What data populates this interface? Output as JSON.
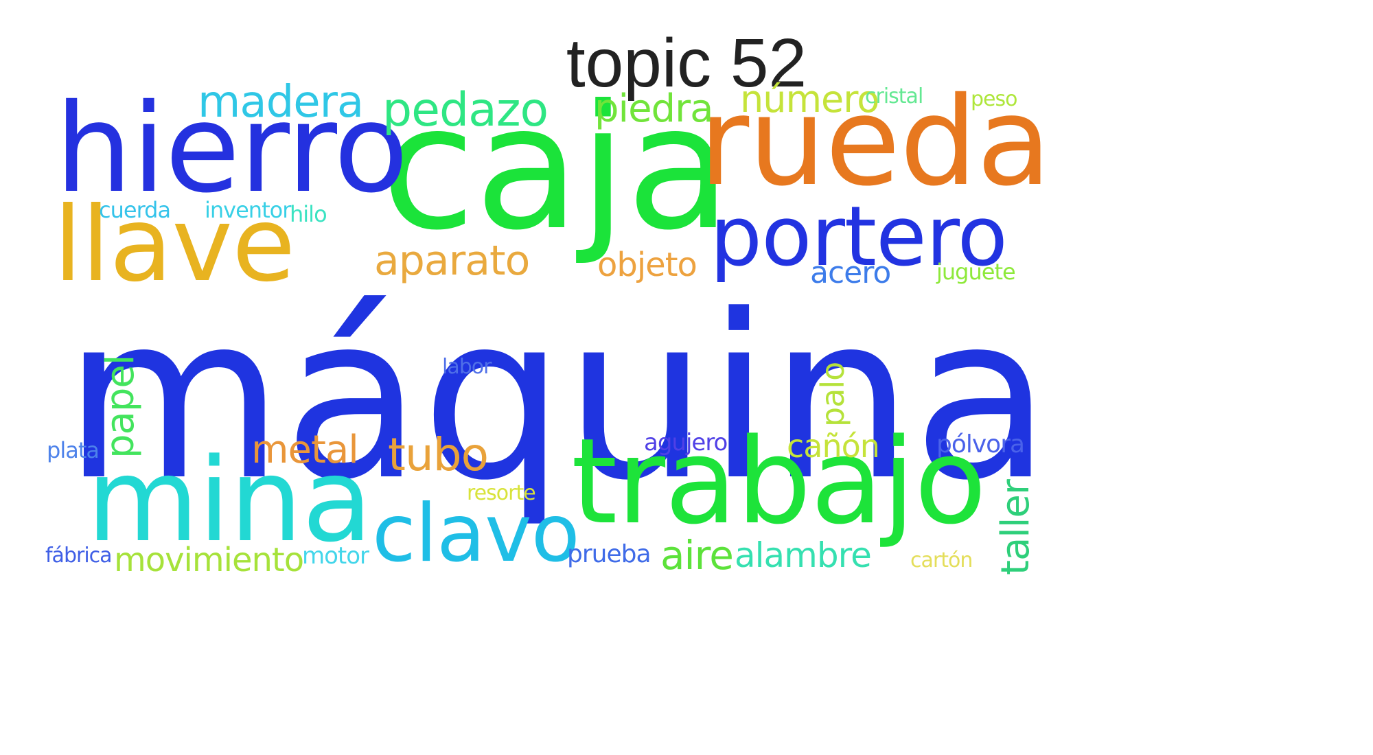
{
  "title": "topic 52",
  "words": [
    {
      "text": "máquina",
      "color": "#1f34e0"
    },
    {
      "text": "caja",
      "color": "#1be33a"
    },
    {
      "text": "rueda",
      "color": "#e7781f"
    },
    {
      "text": "hierro",
      "color": "#2431df"
    },
    {
      "text": "trabajo",
      "color": "#1de33a"
    },
    {
      "text": "mina",
      "color": "#22d8d3"
    },
    {
      "text": "llave",
      "color": "#e8b320"
    },
    {
      "text": "portero",
      "color": "#2233e1"
    },
    {
      "text": "clavo",
      "color": "#1fbee6"
    },
    {
      "text": "madera",
      "color": "#2fc7e6"
    },
    {
      "text": "pedazo",
      "color": "#2ee683"
    },
    {
      "text": "piedra",
      "color": "#71e43a"
    },
    {
      "text": "número",
      "color": "#c5e33a"
    },
    {
      "text": "cristal",
      "color": "#63e892"
    },
    {
      "text": "peso",
      "color": "#aee63a"
    },
    {
      "text": "aparato",
      "color": "#e9a93e"
    },
    {
      "text": "objeto",
      "color": "#eda23f"
    },
    {
      "text": "acero",
      "color": "#3d7cea"
    },
    {
      "text": "juguete",
      "color": "#8ee93a"
    },
    {
      "text": "cuerda",
      "color": "#35c3ea"
    },
    {
      "text": "inventor",
      "color": "#38d0e6"
    },
    {
      "text": "hilo",
      "color": "#3be3c2"
    },
    {
      "text": "papel",
      "color": "#43e45d"
    },
    {
      "text": "labor",
      "color": "#4f6fe8"
    },
    {
      "text": "palo",
      "color": "#b5e23a"
    },
    {
      "text": "plata",
      "color": "#4d82ea"
    },
    {
      "text": "metal",
      "color": "#e9963a"
    },
    {
      "text": "tubo",
      "color": "#e9a23a"
    },
    {
      "text": "agujero",
      "color": "#5040e6"
    },
    {
      "text": "cañón",
      "color": "#c5e33a"
    },
    {
      "text": "pólvora",
      "color": "#4a62ea"
    },
    {
      "text": "resorte",
      "color": "#d8e33a"
    },
    {
      "text": "taller",
      "color": "#2ecf7a"
    },
    {
      "text": "fábrica",
      "color": "#3f5fe6"
    },
    {
      "text": "movimiento",
      "color": "#a6e23a"
    },
    {
      "text": "motor",
      "color": "#43d6ea"
    },
    {
      "text": "prueba",
      "color": "#3f6be8"
    },
    {
      "text": "aire",
      "color": "#5ce23a"
    },
    {
      "text": "alambre",
      "color": "#35e0b0"
    },
    {
      "text": "cartón",
      "color": "#e4de5a"
    }
  ]
}
